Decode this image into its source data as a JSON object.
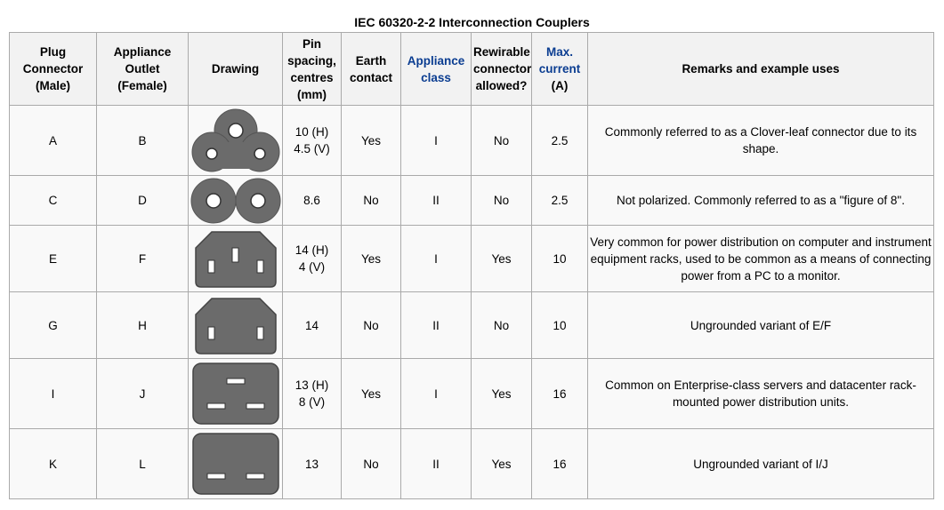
{
  "caption": "IEC 60320-2-2 Interconnection Couplers",
  "headers": {
    "plug": [
      "Plug",
      "Connector",
      "(Male)"
    ],
    "outlet": [
      "Appliance",
      "Outlet (Female)"
    ],
    "drawing": "Drawing",
    "pin": [
      "Pin",
      "spacing,",
      "centres",
      "(mm)"
    ],
    "earth": [
      "Earth",
      "contact"
    ],
    "appliance_class": [
      "Appliance",
      "class"
    ],
    "rewirable": [
      "Rewirable",
      "connector",
      "allowed?"
    ],
    "current": [
      "Max.",
      "current",
      "(A)"
    ],
    "remarks": "Remarks and example uses"
  },
  "rows": [
    {
      "plug": "A",
      "outlet": "B",
      "drawing_icon": "clover-leaf-connector-icon",
      "pin": [
        "10 (H)",
        "4.5 (V)"
      ],
      "earth": "Yes",
      "class": "I",
      "rewirable": "No",
      "current": "2.5",
      "remarks": [
        "Commonly referred to as a Clover-leaf connector due to its shape."
      ]
    },
    {
      "plug": "C",
      "outlet": "D",
      "drawing_icon": "figure-8-connector-icon",
      "pin": [
        "8.6"
      ],
      "earth": "No",
      "class": "II",
      "rewirable": "No",
      "current": "2.5",
      "remarks": [
        "Not polarized. Commonly referred to as a \"figure of 8\"."
      ]
    },
    {
      "plug": "E",
      "outlet": "F",
      "drawing_icon": "c13-connector-icon",
      "pin": [
        "14 (H)",
        "4 (V)"
      ],
      "earth": "Yes",
      "class": "I",
      "rewirable": "Yes",
      "current": "10",
      "remarks": [
        "Very common for power distribution on computer and instrument",
        "equipment racks, used to be common as a means of connecting",
        "power from a PC to a monitor."
      ]
    },
    {
      "plug": "G",
      "outlet": "H",
      "drawing_icon": "c7-ungrounded-connector-icon",
      "pin": [
        "14"
      ],
      "earth": "No",
      "class": "II",
      "rewirable": "No",
      "current": "10",
      "remarks": [
        "Ungrounded variant of E/F"
      ]
    },
    {
      "plug": "I",
      "outlet": "J",
      "drawing_icon": "c19-connector-icon",
      "pin": [
        "13 (H)",
        "8 (V)"
      ],
      "earth": "Yes",
      "class": "I",
      "rewirable": "Yes",
      "current": "16",
      "remarks": [
        "Common on Enterprise-class servers and datacenter rack-",
        "mounted power distribution units."
      ]
    },
    {
      "plug": "K",
      "outlet": "L",
      "drawing_icon": "c21-ungrounded-connector-icon",
      "pin": [
        "13"
      ],
      "earth": "No",
      "class": "II",
      "rewirable": "Yes",
      "current": "16",
      "remarks": [
        "Ungrounded variant of I/J"
      ]
    }
  ],
  "colors": {
    "yes": "#9ff99f",
    "no": "#ff9595",
    "header_link": "#0b3d91",
    "connector_fill": "#6b6b6b"
  }
}
